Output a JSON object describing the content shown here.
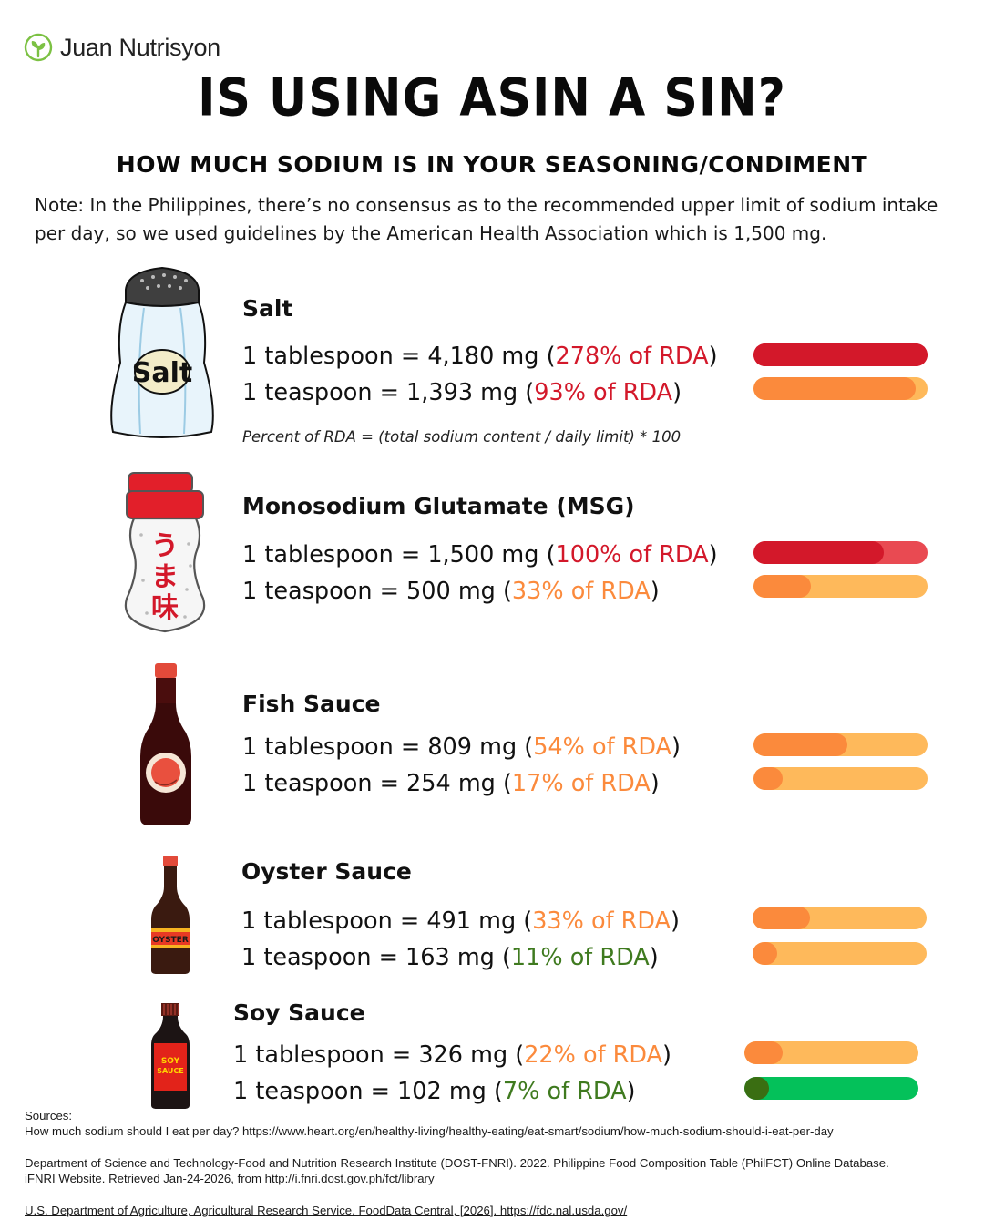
{
  "brand": {
    "name": "Juan Nutrisyon",
    "icon": "sprout-icon"
  },
  "title": "IS USING ASIN A SIN?",
  "subtitle": "HOW MUCH SODIUM IS IN YOUR SEASONING/CONDIMENT",
  "note": "Note: In the Philippines, there’s no consensus as to the recommended upper limit of sodium intake per day, so we used guidelines by the American Health Association which is 1,500 mg.",
  "formula": "Percent of RDA = (total sodium content / daily limit) * 100",
  "colors": {
    "red": "#d3182a",
    "orange": "#fb8a3c",
    "green": "#3f7a1f",
    "bar_track_light_orange": "#feb95b",
    "bar_track_pink": "#e94a52",
    "bar_green": "#04c15a"
  },
  "items": [
    {
      "name": "Salt",
      "icon": "salt-shaker-icon",
      "icon_label": "Salt",
      "tbsp": {
        "prefix": "1 tablespoon = 4,180 mg (",
        "pct": "278% of RDA",
        "suffix": ")",
        "percent": 278
      },
      "tsp": {
        "prefix": "1 teaspoon = 1,393 mg (",
        "pct": "93% of RDA",
        "suffix": ")",
        "percent": 93
      }
    },
    {
      "name": "Monosodium Glutamate (MSG)",
      "icon": "msg-shaker-icon",
      "icon_label": "うま味",
      "tbsp": {
        "prefix": "1 tablespoon =  1,500 mg (",
        "pct": "100% of RDA",
        "suffix": ")",
        "percent": 100
      },
      "tsp": {
        "prefix": "1 teaspoon = 500 mg (",
        "pct": "33% of RDA",
        "suffix": ")",
        "percent": 33
      }
    },
    {
      "name": "Fish Sauce",
      "icon": "fish-sauce-bottle-icon",
      "tbsp": {
        "prefix": "1 tablespoon =  809 mg (",
        "pct": "54% of RDA",
        "suffix": ")",
        "percent": 54
      },
      "tsp": {
        "prefix": "1 teaspoon = 254 mg (",
        "pct": "17% of RDA",
        "suffix": ")",
        "percent": 17
      }
    },
    {
      "name": "Oyster Sauce",
      "icon": "oyster-sauce-bottle-icon",
      "icon_label": "OYSTER",
      "tbsp": {
        "prefix": "1 tablespoon =  491 mg (",
        "pct": "33% of RDA",
        "suffix": ")",
        "percent": 33
      },
      "tsp": {
        "prefix": "1 teaspoon = 163 mg (",
        "pct": "11% of RDA",
        "suffix": ")",
        "percent": 11
      }
    },
    {
      "name": "Soy Sauce",
      "icon": "soy-sauce-bottle-icon",
      "icon_label_1": "SOY",
      "icon_label_2": "SAUCE",
      "tbsp": {
        "prefix": "1 tablespoon =  326 mg (",
        "pct": "22% of RDA",
        "suffix": ")",
        "percent": 22
      },
      "tsp": {
        "prefix": "1 teaspoon = 102 mg (",
        "pct": "7% of RDA",
        "suffix": ")",
        "percent": 7
      }
    }
  ],
  "sources": {
    "heading": "Sources:",
    "s1": "How much sodium should I eat per day? https://www.heart.org/en/healthy-living/healthy-eating/eat-smart/sodium/how-much-sodium-should-i-eat-per-day",
    "s2_line1": "Department of Science and Technology-Food and Nutrition Research Institute (DOST-FNRI). 2022. Philippine Food Composition Table (PhilFCT) Online Database.",
    "s2_line2_prefix": "iFNRI Website. Retrieved Jan-24-2026, from ",
    "s2_link": "http://i.fnri.dost.gov.ph/fct/library",
    "s3": "U.S. Department of Agriculture, Agricultural Research Service. FoodData Central, [2026]. https://fdc.nal.usda.gov/ "
  }
}
